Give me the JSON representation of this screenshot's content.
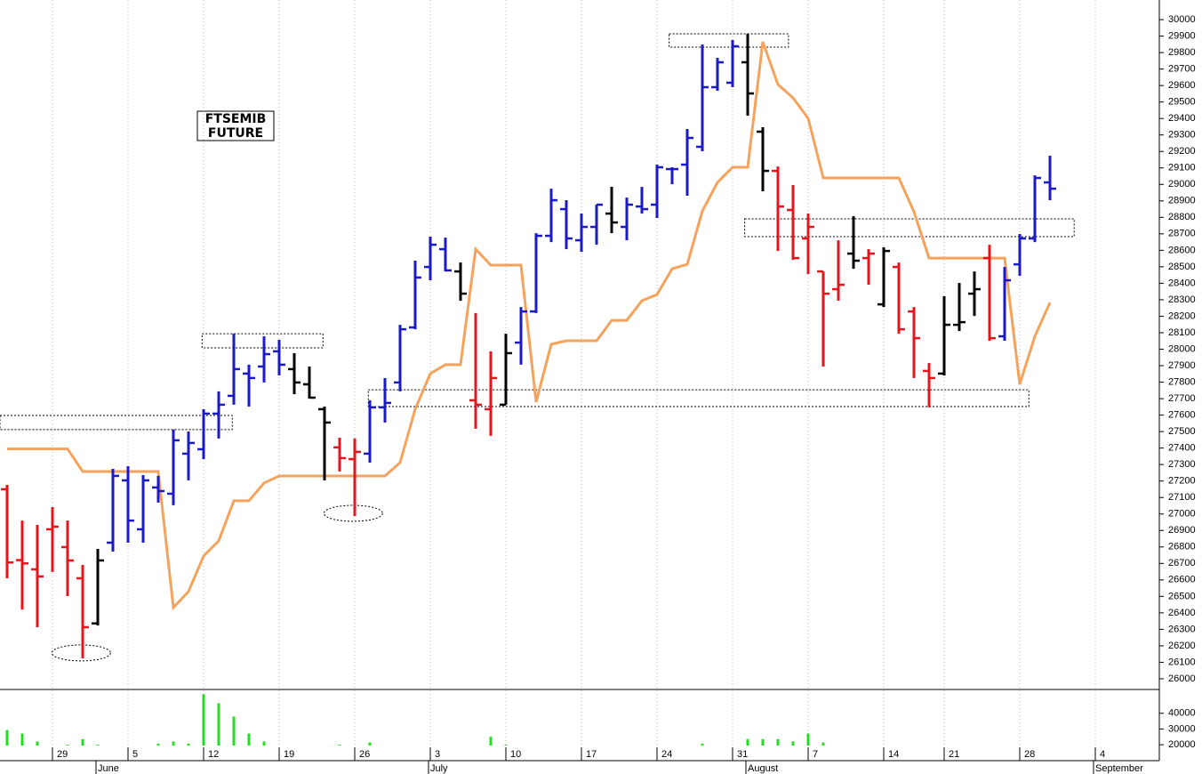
{
  "chart_data": {
    "type": "ohlc",
    "title": [
      "FTSEMIB",
      "FUTURE"
    ],
    "categories": [
      null,
      null,
      null,
      "29",
      null,
      null,
      null,
      null,
      "5",
      null,
      null,
      null,
      null,
      "12",
      null,
      null,
      null,
      null,
      "19",
      null,
      null,
      null,
      null,
      "26",
      null,
      null,
      null,
      null,
      "3",
      null,
      null,
      null,
      null,
      "10",
      null,
      null,
      null,
      null,
      "17",
      null,
      null,
      null,
      null,
      "24",
      null,
      null,
      null,
      null,
      "31",
      null,
      null,
      null,
      null,
      "7",
      null,
      null,
      null,
      null,
      "14",
      null,
      null,
      null,
      "21",
      null,
      null,
      null,
      null,
      "28",
      null,
      null,
      null,
      null,
      "4"
    ],
    "month_categories": [
      null,
      null,
      null,
      null,
      null,
      null,
      "June",
      null,
      null,
      null,
      null,
      null,
      null,
      null,
      null,
      null,
      null,
      null,
      null,
      null,
      null,
      null,
      null,
      null,
      null,
      null,
      null,
      null,
      "July",
      null,
      null,
      null,
      null,
      null,
      null,
      null,
      null,
      null,
      null,
      null,
      null,
      null,
      null,
      null,
      null,
      null,
      null,
      null,
      null,
      "August",
      null,
      null,
      null,
      null,
      null,
      null,
      null,
      null,
      null,
      null,
      null,
      null,
      null,
      null,
      null,
      null,
      null,
      null,
      null,
      null,
      null,
      null,
      "September"
    ],
    "open": [
      27150,
      26720,
      26664,
      26907,
      26799,
      26610,
      26336,
      26826,
      27204,
      26907,
      27161,
      27123,
      27366,
      27393,
      27609,
      27717,
      27852,
      27895,
      27987,
      27879,
      27787,
      27636,
      27404,
      27333,
      27366,
      27647,
      27798,
      28132,
      28499,
      28607,
      28472,
      27690,
      27636,
      27663,
      28040,
      28229,
      28688,
      28850,
      28661,
      28742,
      28823,
      28742,
      28866,
      28877,
      29093,
      29120,
      29228,
      29590,
      29617,
      29741,
      29320,
      29082,
      28845,
      28672,
      28472,
      28364,
      28580,
      28553,
      28272,
      28499,
      28229,
      27868,
      27852,
      28148,
      28337,
      28553,
      28078,
      28515,
      28672,
      29012,
      null,
      null,
      null
    ],
    "high": [
      27177,
      26960,
      26934,
      27042,
      26960,
      26691,
      26788,
      27274,
      27290,
      27236,
      27231,
      27512,
      27501,
      27636,
      27744,
      28094,
      27906,
      28078,
      28057,
      27976,
      27895,
      27652,
      27463,
      27458,
      27690,
      27825,
      28148,
      28537,
      28683,
      28677,
      28526,
      28219,
      27987,
      28094,
      28256,
      28704,
      28974,
      28904,
      28823,
      28877,
      28985,
      28920,
      28985,
      29120,
      29104,
      29336,
      29849,
      29768,
      29876,
      29914,
      29347,
      29109,
      28996,
      28823,
      28472,
      28661,
      28807,
      28607,
      28618,
      28526,
      28256,
      27916,
      28321,
      28402,
      28472,
      28634,
      28499,
      28699,
      29055,
      29174,
      null,
      null,
      null
    ],
    "low": [
      26610,
      26420,
      26313,
      26648,
      26502,
      26124,
      26324,
      26772,
      26826,
      26826,
      27069,
      27053,
      27204,
      27333,
      27458,
      27663,
      27652,
      27798,
      27841,
      27727,
      27700,
      27204,
      27258,
      26988,
      27312,
      27555,
      27744,
      28121,
      28418,
      28472,
      28294,
      27517,
      27474,
      27663,
      27906,
      28219,
      28650,
      28607,
      28591,
      28634,
      28704,
      28661,
      28823,
      28796,
      29001,
      28931,
      29201,
      29568,
      29590,
      29417,
      28958,
      28596,
      28542,
      28456,
      27895,
      28294,
      28488,
      28391,
      28256,
      28094,
      27825,
      27647,
      27841,
      28110,
      28202,
      28051,
      28051,
      28445,
      28650,
      28904,
      null,
      null,
      null
    ],
    "close": [
      26706,
      26700,
      26621,
      26923,
      26718,
      26313,
      26718,
      27231,
      26960,
      27204,
      27139,
      27447,
      27431,
      27609,
      27663,
      27879,
      27825,
      27970,
      27906,
      27798,
      27706,
      27555,
      27339,
      27377,
      27647,
      27674,
      28121,
      28435,
      28634,
      28478,
      28337,
      27663,
      27825,
      27976,
      28229,
      28688,
      28904,
      28672,
      28742,
      28877,
      28769,
      28877,
      28850,
      29104,
      29093,
      29282,
      29590,
      29741,
      29838,
      29552,
      29082,
      28866,
      28553,
      28742,
      28337,
      28391,
      28537,
      28580,
      28596,
      28121,
      28067,
      27825,
      28148,
      28164,
      28364,
      28067,
      28418,
      28672,
      29039,
      28974,
      null,
      null,
      null
    ],
    "colors": [
      "#e8141c",
      "#e8141c",
      "#e8141c",
      "#e8141c",
      "#e8141c",
      "#e8141c",
      "#000000",
      "#1a1ac8",
      "#1a1ac8",
      "#1a1ac8",
      "#1a1ac8",
      "#1a1ac8",
      "#1a1ac8",
      "#1a1ac8",
      "#1a1ac8",
      "#1a1ac8",
      "#1a1ac8",
      "#1a1ac8",
      "#1a1ac8",
      "#000000",
      "#000000",
      "#000000",
      "#e8141c",
      "#e8141c",
      "#1a1ac8",
      "#1a1ac8",
      "#1a1ac8",
      "#1a1ac8",
      "#1a1ac8",
      "#1a1ac8",
      "#000000",
      "#e8141c",
      "#e8141c",
      "#000000",
      "#1a1ac8",
      "#1a1ac8",
      "#1a1ac8",
      "#1a1ac8",
      "#1a1ac8",
      "#1a1ac8",
      "#000000",
      "#1a1ac8",
      "#1a1ac8",
      "#1a1ac8",
      "#1a1ac8",
      "#1a1ac8",
      "#1a1ac8",
      "#1a1ac8",
      "#1a1ac8",
      "#000000",
      "#000000",
      "#e8141c",
      "#e8141c",
      "#e8141c",
      "#e8141c",
      "#e8141c",
      "#000000",
      "#e8141c",
      "#000000",
      "#e8141c",
      "#e8141c",
      "#e8141c",
      "#000000",
      "#000000",
      "#000000",
      "#e8141c",
      "#1a1ac8",
      "#1a1ac8",
      "#1a1ac8",
      "#1a1ac8",
      null,
      null,
      null
    ],
    "line": {
      "color": "#f5a35c",
      "values": [
        27395,
        27395,
        27395,
        27395,
        27395,
        27258,
        27258,
        27258,
        27258,
        27258,
        27258,
        26432,
        26529,
        26745,
        26837,
        27080,
        27080,
        27188,
        27231,
        27231,
        27231,
        27231,
        27231,
        27231,
        27231,
        27231,
        27312,
        27636,
        27852,
        27906,
        27906,
        28607,
        28510,
        28510,
        28510,
        27679,
        28030,
        28051,
        28051,
        28051,
        28175,
        28175,
        28294,
        28332,
        28488,
        28515,
        28839,
        29012,
        29104,
        29104,
        29865,
        29606,
        29525,
        29401,
        29039,
        29039,
        29039,
        29039,
        29039,
        29039,
        28834,
        28553,
        28553,
        28553,
        28553,
        28553,
        28553,
        27787,
        28078,
        28283,
        null,
        null,
        null
      ]
    },
    "volume": {
      "color": "#22dd22",
      "values": [
        29300,
        27100,
        22100,
        14300,
        20000,
        23600,
        20000,
        19300,
        17900,
        19300,
        20700,
        22100,
        20700,
        52100,
        46400,
        37900,
        27100,
        22100,
        14300,
        17900,
        15000,
        17100,
        20000,
        17900,
        21400,
        16400,
        17100,
        19300,
        18600,
        15000,
        13600,
        16400,
        25000,
        20000,
        16400,
        18600,
        19300,
        16400,
        12900,
        13600,
        15000,
        15000,
        14300,
        15000,
        15000,
        18600,
        20700,
        17900,
        19300,
        23600,
        23600,
        23600,
        22100,
        27100,
        21400,
        18600,
        17100,
        17900,
        17100,
        17900,
        18600,
        19300,
        15700,
        15000,
        15000,
        16400,
        15700,
        13600,
        18600,
        17100,
        null,
        null,
        null
      ],
      "ylim": [
        11000,
        54000
      ],
      "yticks": [
        20000,
        30000,
        40000
      ]
    },
    "boxes": [
      {
        "x": [
          -0.47,
          14.9
        ],
        "y": [
          27512,
          27598
        ]
      },
      {
        "x": [
          12.9,
          20.9
        ],
        "y": [
          28008,
          28094
        ]
      },
      {
        "x": [
          23.9,
          67.6
        ],
        "y": [
          27652,
          27754
        ]
      },
      {
        "x": [
          43.8,
          51.7
        ],
        "y": [
          29833,
          29914
        ]
      },
      {
        "x": [
          48.8,
          70.6
        ],
        "y": [
          28683,
          28791
        ]
      }
    ],
    "ellipses": [
      {
        "x": 4.9,
        "y": 26157
      },
      {
        "x": 22.9,
        "y": 27004
      }
    ],
    "ylim": [
      25935,
      30119
    ],
    "yticks": [
      26000,
      26100,
      26200,
      26300,
      26400,
      26500,
      26600,
      26700,
      26800,
      26900,
      27000,
      27100,
      27200,
      27300,
      27400,
      27500,
      27600,
      27700,
      27800,
      27900,
      28000,
      28100,
      28200,
      28300,
      28400,
      28500,
      28600,
      28700,
      28800,
      28900,
      29000,
      29100,
      29200,
      29300,
      29400,
      29500,
      29600,
      29700,
      29800,
      29900,
      30000
    ],
    "grid": true
  }
}
